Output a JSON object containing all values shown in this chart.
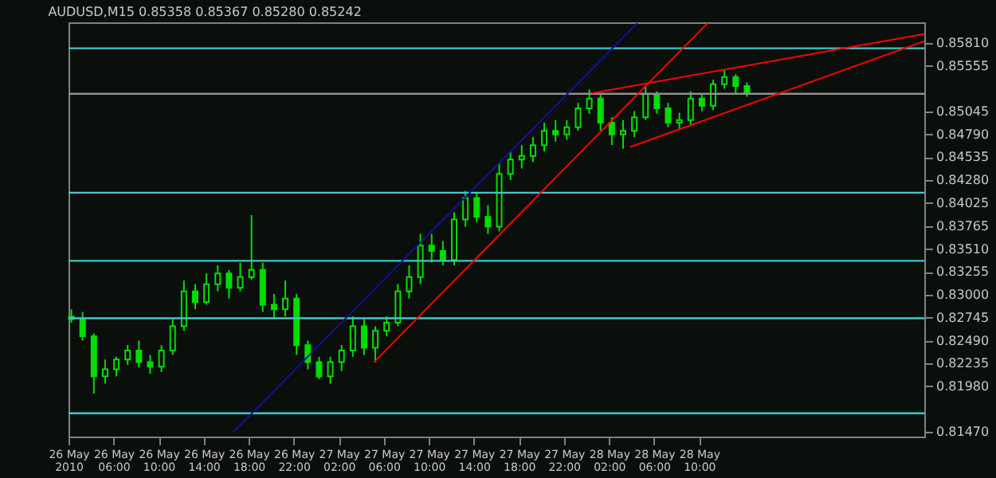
{
  "chart_data": {
    "type": "candlestick",
    "title": "AUDUSD,M15  0.85358 0.85367 0.85280 0.85242",
    "color": "#00dd00",
    "x": [
      "2010-05-26T02:15",
      "2010-05-26T03:15",
      "2010-05-26T04:15",
      "2010-05-26T05:15",
      "2010-05-26T06:15",
      "2010-05-26T07:15",
      "2010-05-26T08:15",
      "2010-05-26T09:15",
      "2010-05-26T10:15",
      "2010-05-26T11:15",
      "2010-05-26T12:15",
      "2010-05-26T13:15",
      "2010-05-26T14:15",
      "2010-05-26T15:15",
      "2010-05-26T16:15",
      "2010-05-26T17:15",
      "2010-05-26T18:15",
      "2010-05-26T19:15",
      "2010-05-26T20:15",
      "2010-05-26T21:15",
      "2010-05-26T22:15",
      "2010-05-26T23:15",
      "2010-05-27T00:15",
      "2010-05-27T01:15",
      "2010-05-27T02:15",
      "2010-05-27T03:15",
      "2010-05-27T04:15",
      "2010-05-27T05:15",
      "2010-05-27T06:15",
      "2010-05-27T07:15",
      "2010-05-27T08:15",
      "2010-05-27T09:15",
      "2010-05-27T10:15",
      "2010-05-27T11:15",
      "2010-05-27T12:15",
      "2010-05-27T13:15",
      "2010-05-27T14:15",
      "2010-05-27T15:15",
      "2010-05-27T16:15",
      "2010-05-27T17:15",
      "2010-05-27T18:15",
      "2010-05-27T19:15",
      "2010-05-27T20:15",
      "2010-05-27T21:15",
      "2010-05-27T22:15",
      "2010-05-27T23:15",
      "2010-05-28T00:15",
      "2010-05-28T01:15",
      "2010-05-28T02:15",
      "2010-05-28T03:15",
      "2010-05-28T04:15",
      "2010-05-28T05:15",
      "2010-05-28T06:15",
      "2010-05-28T07:15",
      "2010-05-28T08:15",
      "2010-05-28T09:15",
      "2010-05-28T10:15",
      "2010-05-28T11:15",
      "2010-05-28T12:15",
      "2010-05-28T13:15",
      "2010-05-28T14:15"
    ],
    "ohlc": [
      [
        0.8276,
        0.8284,
        0.8269,
        0.8273
      ],
      [
        0.8273,
        0.8281,
        0.8249,
        0.8254
      ],
      [
        0.8254,
        0.8257,
        0.819,
        0.8209
      ],
      [
        0.8209,
        0.8228,
        0.8201,
        0.8217
      ],
      [
        0.8217,
        0.8231,
        0.8209,
        0.8228
      ],
      [
        0.8228,
        0.8244,
        0.8222,
        0.8238
      ],
      [
        0.8238,
        0.8249,
        0.8219,
        0.8225
      ],
      [
        0.8225,
        0.8233,
        0.8212,
        0.822
      ],
      [
        0.822,
        0.8244,
        0.8214,
        0.8238
      ],
      [
        0.8238,
        0.8273,
        0.8233,
        0.8265
      ],
      [
        0.8265,
        0.8316,
        0.826,
        0.8304
      ],
      [
        0.8304,
        0.8312,
        0.8284,
        0.8292
      ],
      [
        0.8292,
        0.8324,
        0.8289,
        0.8312
      ],
      [
        0.8312,
        0.8333,
        0.8304,
        0.8324
      ],
      [
        0.8324,
        0.8328,
        0.8296,
        0.8308
      ],
      [
        0.8308,
        0.8336,
        0.8304,
        0.832
      ],
      [
        0.832,
        0.8389,
        0.8317,
        0.8328
      ],
      [
        0.8328,
        0.8336,
        0.8281,
        0.8289
      ],
      [
        0.8289,
        0.8301,
        0.8273,
        0.8284
      ],
      [
        0.8284,
        0.8316,
        0.8276,
        0.8296
      ],
      [
        0.8296,
        0.8301,
        0.8233,
        0.8244
      ],
      [
        0.8244,
        0.8249,
        0.8217,
        0.8225
      ],
      [
        0.8225,
        0.8231,
        0.8206,
        0.8209
      ],
      [
        0.8209,
        0.8231,
        0.8201,
        0.8225
      ],
      [
        0.8225,
        0.8244,
        0.8215,
        0.8238
      ],
      [
        0.8238,
        0.8276,
        0.8231,
        0.8265
      ],
      [
        0.8265,
        0.8273,
        0.8233,
        0.8241
      ],
      [
        0.8241,
        0.8265,
        0.8225,
        0.826
      ],
      [
        0.826,
        0.8276,
        0.8254,
        0.8269
      ],
      [
        0.8269,
        0.8312,
        0.8265,
        0.8304
      ],
      [
        0.8304,
        0.8333,
        0.8296,
        0.832
      ],
      [
        0.832,
        0.8368,
        0.8312,
        0.8355
      ],
      [
        0.8355,
        0.8368,
        0.8336,
        0.8349
      ],
      [
        0.8349,
        0.836,
        0.8333,
        0.8339
      ],
      [
        0.8339,
        0.8392,
        0.8333,
        0.8384
      ],
      [
        0.8384,
        0.8416,
        0.8376,
        0.8408
      ],
      [
        0.8408,
        0.8413,
        0.8381,
        0.8387
      ],
      [
        0.8387,
        0.84,
        0.8368,
        0.8376
      ],
      [
        0.8376,
        0.8448,
        0.8371,
        0.8435
      ],
      [
        0.8435,
        0.846,
        0.8428,
        0.8451
      ],
      [
        0.8451,
        0.8467,
        0.8441,
        0.8455
      ],
      [
        0.8455,
        0.8476,
        0.8448,
        0.8467
      ],
      [
        0.8467,
        0.8492,
        0.846,
        0.8483
      ],
      [
        0.8483,
        0.8495,
        0.8471,
        0.8479
      ],
      [
        0.8479,
        0.8495,
        0.8473,
        0.8487
      ],
      [
        0.8487,
        0.8514,
        0.8483,
        0.8508
      ],
      [
        0.8508,
        0.8529,
        0.8502,
        0.8519
      ],
      [
        0.8519,
        0.8524,
        0.8483,
        0.8492
      ],
      [
        0.8492,
        0.8498,
        0.8467,
        0.8479
      ],
      [
        0.8479,
        0.8495,
        0.8463,
        0.8483
      ],
      [
        0.8483,
        0.8505,
        0.8476,
        0.8498
      ],
      [
        0.8498,
        0.8532,
        0.8495,
        0.8524
      ],
      [
        0.8524,
        0.8527,
        0.8502,
        0.8508
      ],
      [
        0.8508,
        0.8514,
        0.8487,
        0.8492
      ],
      [
        0.8492,
        0.8503,
        0.8484,
        0.8495
      ],
      [
        0.8495,
        0.8527,
        0.849,
        0.8519
      ],
      [
        0.8519,
        0.8524,
        0.8505,
        0.8511
      ],
      [
        0.8511,
        0.854,
        0.8506,
        0.8535
      ],
      [
        0.8535,
        0.8551,
        0.853,
        0.8543
      ],
      [
        0.8543,
        0.8546,
        0.8524,
        0.8533
      ],
      [
        0.8533,
        0.8537,
        0.8521,
        0.8524
      ]
    ],
    "series": [
      {
        "type": "line",
        "color": "#ff0000",
        "x": [
          "2010-05-27T05:08",
          "2010-05-28T10:45"
        ],
        "values": [
          0.8225,
          0.8603
        ]
      },
      {
        "type": "line",
        "color": "#ff0000",
        "x": [
          "2010-05-28T00:30",
          "2010-05-29T06:00"
        ],
        "values": [
          0.8525,
          0.8591
        ]
      },
      {
        "type": "line",
        "color": "#ff0000",
        "x": [
          "2010-05-28T03:53",
          "2010-05-29T06:00"
        ],
        "values": [
          0.8465,
          0.8583
        ]
      },
      {
        "type": "line",
        "color": "#1010a0",
        "x": [
          "2010-05-26T16:38",
          "2010-05-28T04:30"
        ],
        "values": [
          0.8147,
          0.8603
        ]
      }
    ],
    "xlim": [
      "2010-05-26T02:00",
      "2010-05-29T06:00"
    ],
    "xticks": [
      {
        "value": "2010-05-26T02:00",
        "label": "26 May 2010"
      },
      {
        "value": "2010-05-26T06:00",
        "label": "26 May 06:00"
      },
      {
        "value": "2010-05-26T10:00",
        "label": "26 May 10:00"
      },
      {
        "value": "2010-05-26T14:00",
        "label": "26 May 14:00"
      },
      {
        "value": "2010-05-26T18:00",
        "label": "26 May 18:00"
      },
      {
        "value": "2010-05-26T22:00",
        "label": "26 May 22:00"
      },
      {
        "value": "2010-05-27T02:00",
        "label": "27 May 02:00"
      },
      {
        "value": "2010-05-27T06:00",
        "label": "27 May 06:00"
      },
      {
        "value": "2010-05-27T10:00",
        "label": "27 May 10:00"
      },
      {
        "value": "2010-05-27T14:00",
        "label": "27 May 14:00"
      },
      {
        "value": "2010-05-27T18:00",
        "label": "27 May 18:00"
      },
      {
        "value": "2010-05-27T22:00",
        "label": "27 May 22:00"
      },
      {
        "value": "2010-05-28T02:00",
        "label": "28 May 02:00"
      },
      {
        "value": "2010-05-28T06:00",
        "label": "28 May 06:00"
      },
      {
        "value": "2010-05-28T10:00",
        "label": "28 May 10:00"
      }
    ],
    "ylim": [
      0.8142,
      0.8604
    ],
    "yticks": [
      {
        "value": 0.8581,
        "label": "0.85810"
      },
      0.85555,
      0.85045,
      {
        "value": 0.8479,
        "label": "0.84790"
      },
      0.84535,
      {
        "value": 0.8428,
        "label": "0.84280"
      },
      0.84025,
      0.83765,
      {
        "value": 0.8351,
        "label": "0.83510"
      },
      0.83255,
      {
        "value": 0.83,
        "label": "0.83000"
      },
      0.82745,
      {
        "value": 0.8249,
        "label": "0.82490"
      },
      0.82235,
      {
        "value": 0.8198,
        "label": "0.81980"
      },
      {
        "value": 0.8147,
        "label": "0.81470"
      }
    ],
    "ref_lines": [
      {
        "axis": "y",
        "value": 0.8575,
        "color": "#40c8c8"
      },
      {
        "axis": "y",
        "value": 0.85242,
        "color": "#909090"
      },
      {
        "axis": "y",
        "value": 0.8414,
        "color": "#40c8c8"
      },
      {
        "axis": "y",
        "value": 0.8338,
        "color": "#40c8c8"
      },
      {
        "axis": "y",
        "value": 0.8274,
        "color": "#40c8c8"
      },
      {
        "axis": "y",
        "value": 0.8168,
        "color": "#40c8c8"
      }
    ],
    "grid": false
  }
}
